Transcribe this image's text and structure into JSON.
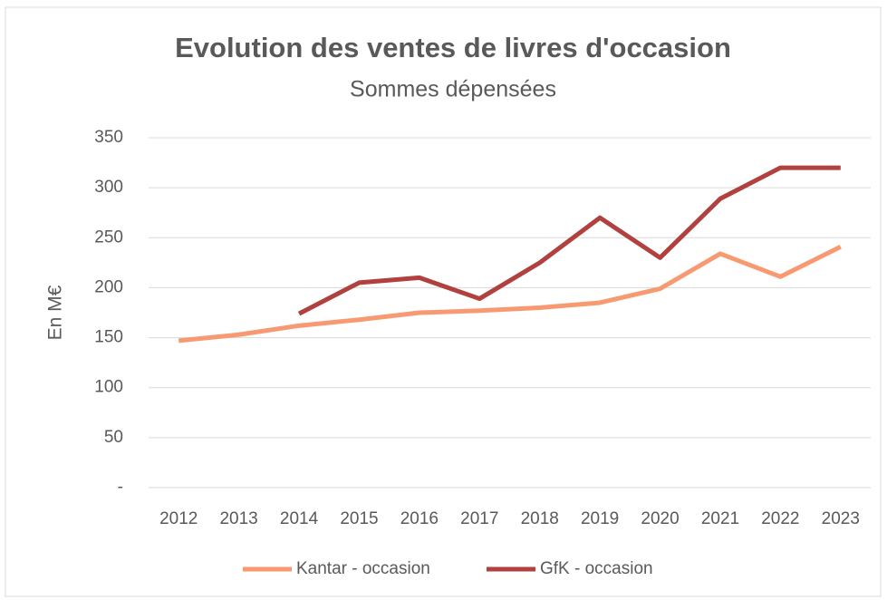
{
  "chart_data": {
    "type": "line",
    "title": "Evolution des ventes de livres d'occasion",
    "subtitle": "Sommes dépensées",
    "y_label": "En M€",
    "categories": [
      "2012",
      "2013",
      "2014",
      "2015",
      "2016",
      "2017",
      "2018",
      "2019",
      "2020",
      "2021",
      "2022",
      "2023"
    ],
    "series": [
      {
        "name": "Kantar - occasion",
        "color": "#f79a72",
        "values": [
          147,
          153,
          162,
          168,
          175,
          177,
          180,
          185,
          199,
          234,
          211,
          241
        ]
      },
      {
        "name": "GfK - occasion",
        "color": "#b0413e",
        "values": [
          null,
          null,
          174,
          205,
          210,
          189,
          225,
          270,
          230,
          289,
          320,
          320
        ]
      }
    ],
    "ylim": [
      0,
      350
    ],
    "yticks": [
      {
        "value": 0,
        "label": "-"
      },
      50,
      100,
      150,
      200,
      250,
      300,
      350
    ],
    "grid": true,
    "legend": "bottom"
  }
}
